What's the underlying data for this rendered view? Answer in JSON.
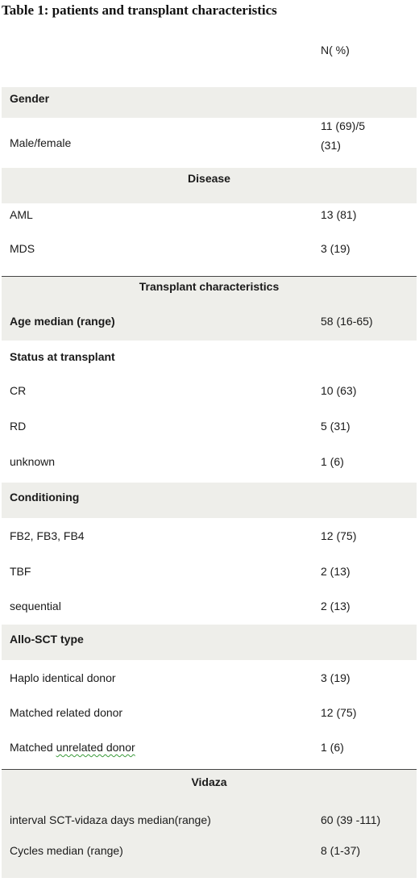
{
  "title": "Table 1: patients and transplant characteristics",
  "header": {
    "col2": "N( %)"
  },
  "gender": {
    "heading": "Gender",
    "rows": [
      {
        "label": "Male/female",
        "value_line1": "11 (69)/5",
        "value_line2": "(31)"
      }
    ]
  },
  "disease": {
    "heading": "Disease",
    "rows": [
      {
        "label": "AML",
        "value": "13 (81)"
      },
      {
        "label": "MDS",
        "value": "3 (19)"
      }
    ]
  },
  "transplant": {
    "heading": "Transplant characteristics",
    "age": {
      "label": "Age median (range)",
      "value": "58 (16-65)"
    },
    "status_heading": "Status at transplant",
    "status_rows": [
      {
        "label": "CR",
        "value": "10 (63)"
      },
      {
        "label": "RD",
        "value": "5 (31)"
      },
      {
        "label": "unknown",
        "value": "1 (6)"
      }
    ],
    "conditioning_heading": "Conditioning",
    "conditioning_rows": [
      {
        "label": "FB2, FB3, FB4",
        "value": "12 (75)"
      },
      {
        "label": "TBF",
        "value": "2 (13)"
      },
      {
        "label": "sequential",
        "value": "2 (13)"
      }
    ],
    "allo_heading": "Allo-SCT type",
    "allo_rows": [
      {
        "label": "Haplo identical donor",
        "value": "3 (19)"
      },
      {
        "label": "Matched related donor",
        "value": "12 (75)"
      },
      {
        "label_prefix": "Matched ",
        "label_misspelled": "unrelated  donor",
        "value": "1 (6)"
      }
    ]
  },
  "vidaza": {
    "heading": "Vidaza",
    "rows": [
      {
        "label": "interval SCT-vidaza days median(range)",
        "value": "60 (39 -111)"
      },
      {
        "label": "Cycles median (range)",
        "value": "8 (1-37)"
      }
    ]
  }
}
